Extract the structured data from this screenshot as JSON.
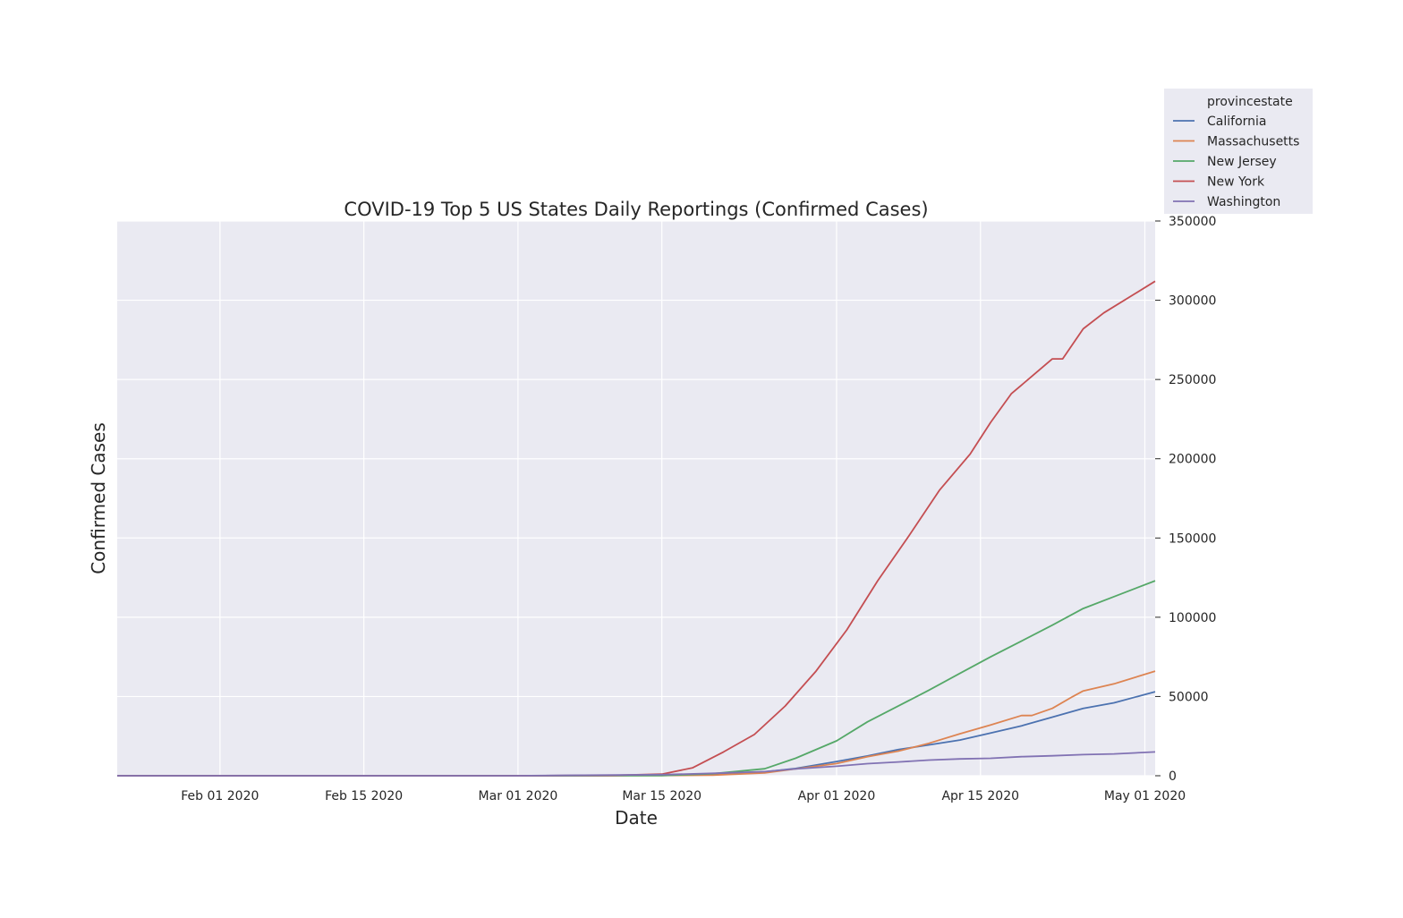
{
  "chart_data": {
    "type": "line",
    "title": "COVID-19 Top 5 US States Daily Reportings (Confirmed Cases)",
    "xlabel": "Date",
    "ylabel": "Confirmed Cases",
    "y_axis_side": "right",
    "ylim": [
      0,
      350000
    ],
    "xlim": [
      "2020-01-22",
      "2020-05-02"
    ],
    "yticks": [
      0,
      50000,
      100000,
      150000,
      200000,
      250000,
      300000,
      350000
    ],
    "xticks": [
      {
        "date": "2020-02-01",
        "label": "Feb 01 2020"
      },
      {
        "date": "2020-02-15",
        "label": "Feb 15 2020"
      },
      {
        "date": "2020-03-01",
        "label": "Mar 01 2020"
      },
      {
        "date": "2020-03-15",
        "label": "Mar 15 2020"
      },
      {
        "date": "2020-04-01",
        "label": "Apr 01 2020"
      },
      {
        "date": "2020-04-15",
        "label": "Apr 15 2020"
      },
      {
        "date": "2020-05-01",
        "label": "May 01 2020"
      }
    ],
    "grid": true,
    "legend": {
      "title": "provincestate",
      "placement": "top-right outside"
    },
    "series": [
      {
        "name": "California",
        "color": "#4c72b0",
        "x": [
          "2020-01-22",
          "2020-02-15",
          "2020-03-01",
          "2020-03-15",
          "2020-03-20",
          "2020-03-25",
          "2020-03-28",
          "2020-04-01",
          "2020-04-04",
          "2020-04-07",
          "2020-04-10",
          "2020-04-13",
          "2020-04-16",
          "2020-04-19",
          "2020-04-22",
          "2020-04-25",
          "2020-04-28",
          "2020-05-02"
        ],
        "y": [
          0,
          2,
          10,
          300,
          1000,
          2500,
          4600,
          9000,
          12500,
          16500,
          19500,
          22500,
          27000,
          31500,
          37000,
          42500,
          46000,
          53000
        ]
      },
      {
        "name": "Massachusetts",
        "color": "#dd8452",
        "x": [
          "2020-01-22",
          "2020-02-15",
          "2020-03-01",
          "2020-03-15",
          "2020-03-20",
          "2020-03-25",
          "2020-03-28",
          "2020-04-01",
          "2020-04-04",
          "2020-04-07",
          "2020-04-10",
          "2020-04-13",
          "2020-04-16",
          "2020-04-19",
          "2020-04-20",
          "2020-04-22",
          "2020-04-24",
          "2020-04-25",
          "2020-04-28",
          "2020-05-02"
        ],
        "y": [
          0,
          1,
          1,
          150,
          400,
          1800,
          4300,
          7700,
          12000,
          15500,
          20500,
          26500,
          32000,
          38000,
          38000,
          42500,
          50000,
          53500,
          58000,
          66000
        ]
      },
      {
        "name": "New Jersey",
        "color": "#55a868",
        "x": [
          "2020-01-22",
          "2020-03-01",
          "2020-03-15",
          "2020-03-20",
          "2020-03-25",
          "2020-03-28",
          "2020-04-01",
          "2020-04-04",
          "2020-04-07",
          "2020-04-10",
          "2020-04-13",
          "2020-04-16",
          "2020-04-19",
          "2020-04-22",
          "2020-04-25",
          "2020-04-28",
          "2020-05-02"
        ],
        "y": [
          0,
          0,
          100,
          1300,
          4400,
          11000,
          22000,
          34000,
          44000,
          54000,
          64600,
          75000,
          85000,
          95000,
          105500,
          113000,
          123000
        ]
      },
      {
        "name": "New York",
        "color": "#c44e52",
        "x": [
          "2020-01-22",
          "2020-03-01",
          "2020-03-10",
          "2020-03-15",
          "2020-03-18",
          "2020-03-21",
          "2020-03-24",
          "2020-03-27",
          "2020-03-30",
          "2020-04-02",
          "2020-04-05",
          "2020-04-08",
          "2020-04-11",
          "2020-04-14",
          "2020-04-16",
          "2020-04-18",
          "2020-04-20",
          "2020-04-22",
          "2020-04-23",
          "2020-04-25",
          "2020-04-27",
          "2020-04-30",
          "2020-05-02"
        ],
        "y": [
          0,
          0,
          200,
          1000,
          5000,
          15000,
          26000,
          44000,
          66000,
          92000,
          123000,
          151000,
          180000,
          203000,
          223000,
          241000,
          252000,
          263000,
          263000,
          282000,
          292000,
          304000,
          312000
        ]
      },
      {
        "name": "Washington",
        "color": "#8172b3",
        "x": [
          "2020-01-22",
          "2020-02-15",
          "2020-03-01",
          "2020-03-15",
          "2020-03-20",
          "2020-03-25",
          "2020-03-28",
          "2020-04-01",
          "2020-04-04",
          "2020-04-07",
          "2020-04-10",
          "2020-04-13",
          "2020-04-16",
          "2020-04-19",
          "2020-04-22",
          "2020-04-25",
          "2020-04-28",
          "2020-05-02"
        ],
        "y": [
          0,
          1,
          20,
          700,
          1500,
          2600,
          4300,
          6000,
          7600,
          8700,
          9900,
          10600,
          11000,
          12000,
          12600,
          13300,
          13800,
          15000
        ]
      }
    ]
  }
}
